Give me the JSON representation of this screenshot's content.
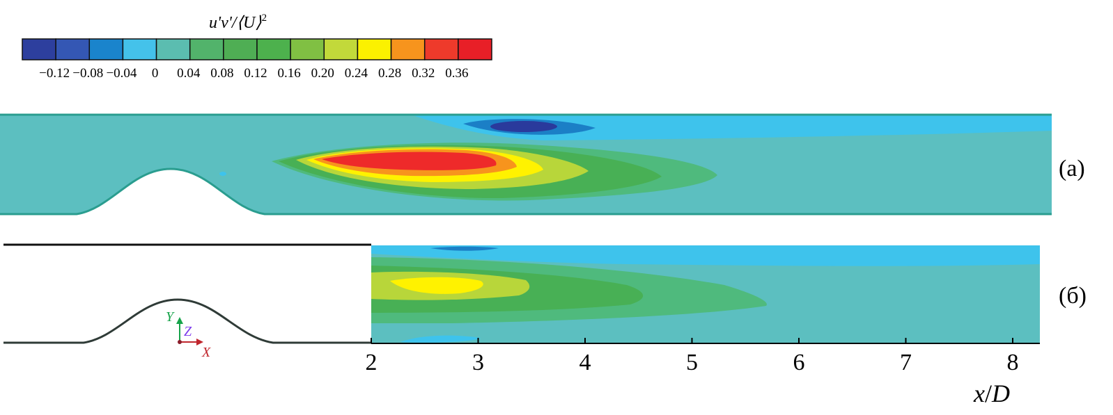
{
  "colorbar": {
    "title_quantity": "u'v'/",
    "title_mean": "⟨U⟩",
    "title_exp": "2",
    "colors": [
      "#2d3f9e",
      "#3457b4",
      "#1a84cc",
      "#44c2ea",
      "#5bbdb0",
      "#52b36b",
      "#4fae54",
      "#4db14d",
      "#80c043",
      "#c2d93a",
      "#fbf100",
      "#f7941d",
      "#ee3a2b",
      "#e81f27"
    ],
    "tick_labels": [
      "−0.12",
      "−0.08",
      "−0.04",
      "0",
      "0.04",
      "0.08",
      "0.12",
      "0.16",
      "0.20",
      "0.24",
      "0.28",
      "0.32",
      "0.36"
    ]
  },
  "panels": {
    "a_label": "(a)",
    "b_label": "(б)"
  },
  "axis": {
    "ticks": [
      "2",
      "3",
      "4",
      "5",
      "6",
      "7",
      "8"
    ],
    "label_x": "x",
    "label_slash": "/",
    "label_d": "D"
  },
  "triad": {
    "y": "Y",
    "z": "Z",
    "x": "X",
    "y_color": "#16a34a",
    "z_color": "#7c3aed",
    "x_color": "#c0262d"
  },
  "field_colors": {
    "background": "#5cbfc0",
    "light_blue": "#3ec3ec",
    "mid_blue": "#1b7fc6",
    "dark_blue": "#2a3a9c",
    "green_light": "#4fba7d",
    "green": "#48b055",
    "yellow_green": "#b8d63a",
    "yellow": "#fff200",
    "orange": "#f7941d",
    "red": "#ee2a2a",
    "wall": "#2a9d8f"
  }
}
